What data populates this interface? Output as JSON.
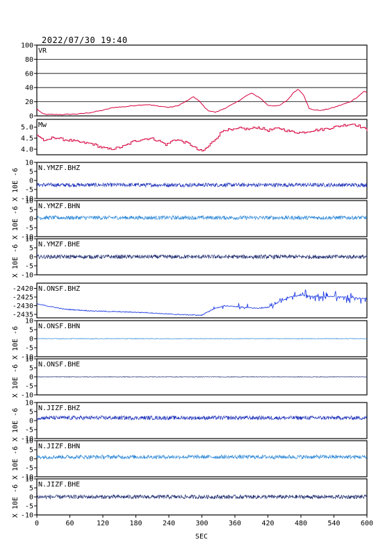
{
  "chart_data": {
    "type": "line",
    "title": "2022/07/30  19:40",
    "xlabel": "SEC",
    "xlim": [
      0,
      600
    ],
    "xticks": [
      0,
      60,
      120,
      180,
      240,
      300,
      360,
      420,
      480,
      540,
      600
    ],
    "panels": [
      {
        "key": "vr",
        "label": "VR",
        "ylim": [
          0,
          100
        ],
        "yticks": [
          "100",
          "80",
          "60",
          "40",
          "20",
          "0"
        ],
        "grid": true,
        "color": "#d6003c",
        "x": [
          0,
          10,
          20,
          50,
          80,
          100,
          120,
          140,
          160,
          180,
          200,
          220,
          240,
          255,
          270,
          285,
          295,
          310,
          325,
          345,
          360,
          380,
          390,
          405,
          420,
          440,
          455,
          468,
          475,
          485,
          495,
          510,
          520,
          540,
          555,
          570,
          585,
          595,
          600
        ],
        "values": [
          10,
          3,
          2,
          2,
          3,
          5,
          8,
          12,
          13,
          15,
          16,
          14,
          12,
          14,
          20,
          27,
          21,
          8,
          5,
          12,
          18,
          28,
          32,
          26,
          15,
          14,
          22,
          34,
          38,
          30,
          10,
          8,
          8,
          12,
          16,
          20,
          28,
          35,
          33
        ]
      },
      {
        "key": "mw",
        "label": "Mw",
        "ylim": [
          3.75,
          5.35
        ],
        "yticks": [
          "5.0",
          "4.5",
          "4.0"
        ],
        "grid": false,
        "color": "#d6003c",
        "x": [
          0,
          15,
          30,
          45,
          60,
          80,
          100,
          115,
          130,
          145,
          160,
          175,
          190,
          205,
          220,
          235,
          250,
          265,
          280,
          290,
          300,
          310,
          325,
          340,
          355,
          370,
          385,
          400,
          420,
          440,
          460,
          480,
          500,
          520,
          540,
          560,
          575,
          590,
          600
        ],
        "values": [
          4.65,
          4.35,
          4.55,
          4.45,
          4.4,
          4.3,
          4.25,
          4.1,
          4.0,
          4.05,
          4.15,
          4.35,
          4.45,
          4.5,
          4.4,
          4.2,
          4.45,
          4.35,
          4.2,
          4.0,
          3.9,
          4.1,
          4.5,
          4.9,
          4.85,
          4.95,
          4.9,
          5.0,
          4.85,
          4.95,
          4.8,
          4.75,
          4.85,
          4.9,
          5.0,
          5.1,
          5.15,
          5.0,
          4.85
        ]
      },
      {
        "key": "ymzf_bhz",
        "label": "N.YMZF.BHZ",
        "ylim": [
          -10,
          10
        ],
        "yticks": [
          "10",
          "5",
          "0",
          "-5",
          "-10"
        ],
        "grid": false,
        "color": "#1b2fb8",
        "x": [
          0,
          600
        ],
        "values": [
          -2.5,
          -2.5
        ]
      },
      {
        "key": "ymzf_bhn",
        "label": "N.YMZF.BHN",
        "ylim": [
          -10,
          10
        ],
        "yticks": [
          "10",
          "5",
          "0",
          "-5",
          "-10"
        ],
        "grid": false,
        "color": "#2a86d6",
        "x": [
          0,
          600
        ],
        "values": [
          0.5,
          0.5
        ]
      },
      {
        "key": "ymzf_bhe",
        "label": "N.YMZF.BHE",
        "ylim": [
          -10,
          10
        ],
        "yticks": [
          "10",
          "5",
          "0",
          "-5",
          "-10"
        ],
        "grid": false,
        "color": "#1c2a6e",
        "x": [
          0,
          600
        ],
        "values": [
          0,
          0
        ]
      },
      {
        "key": "onsf_bhz",
        "label": "N.ONSF.BHZ",
        "ylim": [
          -2437,
          -2417
        ],
        "yticks": [
          "-2420",
          "-2425",
          "-2430",
          "-2435"
        ],
        "grid": false,
        "color": "#1230e0",
        "x": [
          0,
          50,
          100,
          150,
          200,
          250,
          300,
          320,
          340,
          360,
          380,
          400,
          420,
          440,
          460,
          480,
          500,
          520,
          540,
          560,
          580,
          600
        ],
        "values": [
          -2429,
          -2432,
          -2433,
          -2433.5,
          -2434,
          -2435,
          -2435.5,
          -2432,
          -2430,
          -2430.5,
          -2431,
          -2431.5,
          -2431,
          -2428,
          -2425,
          -2424,
          -2424.5,
          -2425,
          -2424.5,
          -2425,
          -2425.5,
          -2426
        ]
      },
      {
        "key": "onsf_bhn",
        "label": "N.ONSF.BHN",
        "ylim": [
          -10,
          10
        ],
        "yticks": [
          "10",
          "5",
          "0",
          "-5",
          "-10"
        ],
        "grid": false,
        "color": "#2a86d6",
        "x": [
          0,
          600
        ],
        "values": [
          0,
          0
        ]
      },
      {
        "key": "onsf_bhe",
        "label": "N.ONSF.BHE",
        "ylim": [
          -10,
          10
        ],
        "yticks": [
          "10",
          "5",
          "0",
          "-5",
          "-10"
        ],
        "grid": false,
        "color": "#1c2a6e",
        "x": [
          0,
          600
        ],
        "values": [
          0,
          0
        ]
      },
      {
        "key": "jizf_bhz",
        "label": "N.JIZF.BHZ",
        "ylim": [
          -10,
          10
        ],
        "yticks": [
          "10",
          "5",
          "0",
          "-5",
          "-10"
        ],
        "grid": false,
        "color": "#1b2fb8",
        "x": [
          0,
          600
        ],
        "values": [
          1.5,
          1.5
        ]
      },
      {
        "key": "jizf_bhn",
        "label": "N.JIZF.BHN",
        "ylim": [
          -10,
          10
        ],
        "yticks": [
          "10",
          "5",
          "0",
          "-5",
          "-10"
        ],
        "grid": false,
        "color": "#2a86d6",
        "x": [
          0,
          600
        ],
        "values": [
          1.0,
          1.0
        ]
      },
      {
        "key": "jizf_bhe",
        "label": "N.JIZF.BHE",
        "ylim": [
          -10,
          10
        ],
        "yticks": [
          "10",
          "5",
          "0",
          "-5",
          "-10"
        ],
        "grid": false,
        "color": "#1c2a6e",
        "x": [
          0,
          600
        ],
        "values": [
          0,
          0
        ]
      }
    ],
    "ylabel_units": "X 10E -6"
  }
}
